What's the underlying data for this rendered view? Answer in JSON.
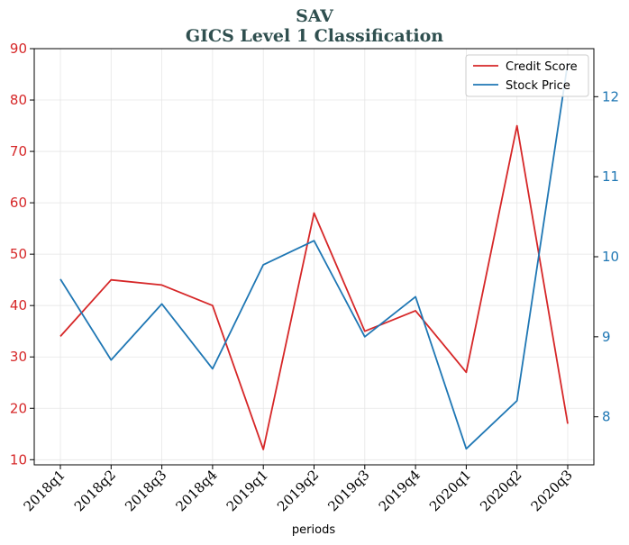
{
  "chart_data": {
    "type": "line",
    "title_line1": "SAV",
    "title_line2": "GICS Level 1 Classification",
    "xlabel": "periods",
    "categories": [
      "2018q1",
      "2018q2",
      "2018q3",
      "2018q4",
      "2019q1",
      "2019q2",
      "2019q3",
      "2019q4",
      "2020q1",
      "2020q2",
      "2020q3"
    ],
    "left_axis": {
      "ylim": [
        9,
        90
      ],
      "ticks": [
        10,
        20,
        30,
        40,
        50,
        60,
        70,
        80,
        90
      ],
      "color": "#d62728"
    },
    "right_axis": {
      "ylim": [
        7.4,
        12.6
      ],
      "ticks": [
        8,
        9,
        10,
        11,
        12
      ],
      "color": "#1f77b4"
    },
    "series": [
      {
        "name": "Credit Score",
        "axis": "left",
        "color": "#d62728",
        "values": [
          34,
          45,
          44,
          40,
          12,
          58,
          35,
          39,
          27,
          75,
          17
        ]
      },
      {
        "name": "Stock Price",
        "axis": "right",
        "color": "#1f77b4",
        "values": [
          9.72,
          8.71,
          9.41,
          8.6,
          9.9,
          10.2,
          9.0,
          9.5,
          7.6,
          8.2,
          12.42
        ]
      }
    ],
    "grid": true,
    "legend_position": "top-right"
  }
}
